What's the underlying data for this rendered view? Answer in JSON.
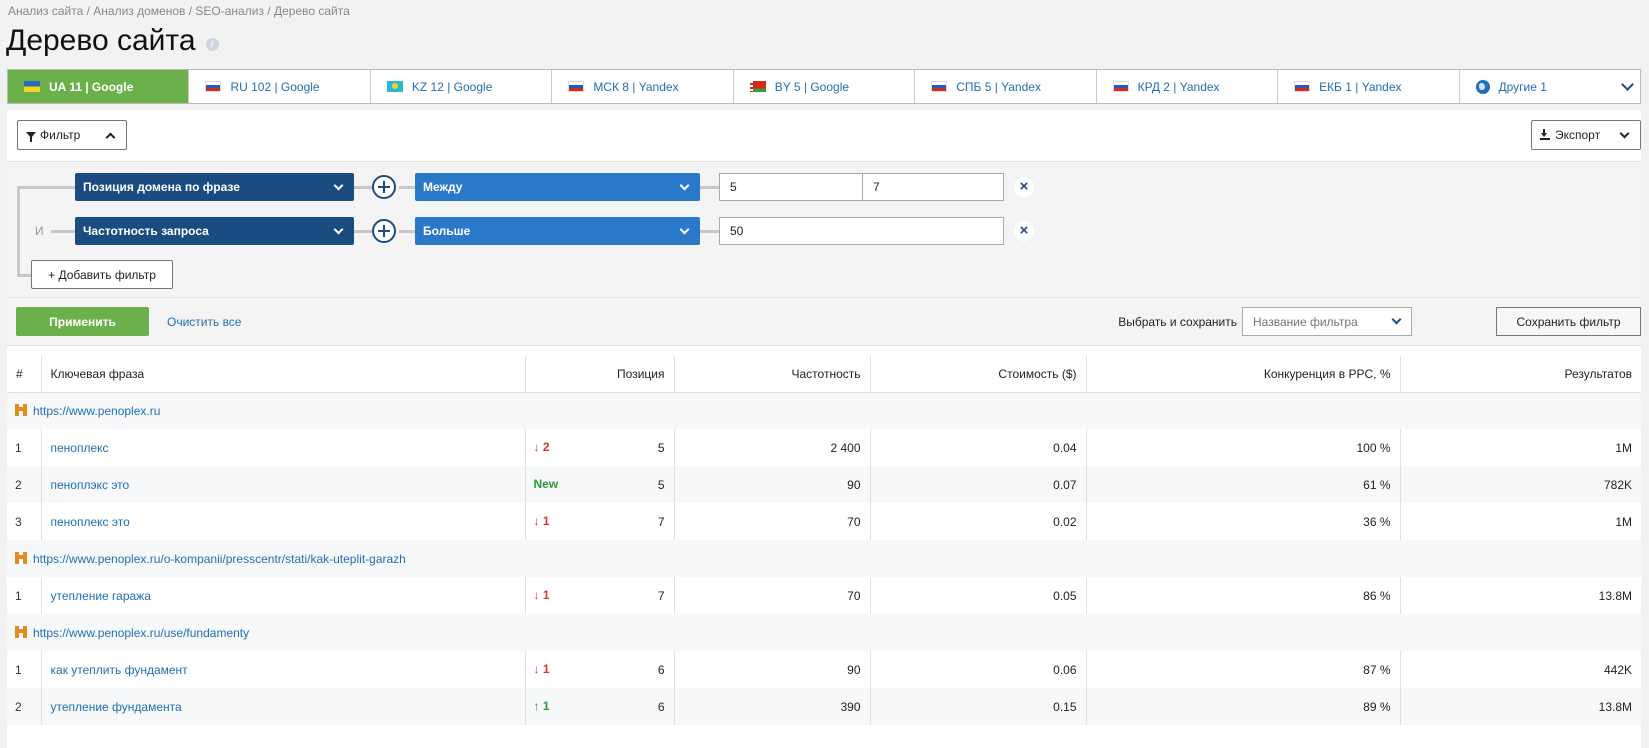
{
  "breadcrumb": [
    "Анализ сайта",
    "Анализ доменов",
    "SEO-анализ",
    "Дерево сайта"
  ],
  "breadcrumb_sep": " / ",
  "page_title": "Дерево сайта",
  "region_tabs": [
    {
      "label": "UA 11 | Google",
      "flag": "ua",
      "active": true
    },
    {
      "label": "RU 102 | Google",
      "flag": "ru",
      "active": false
    },
    {
      "label": "KZ 12 | Google",
      "flag": "kz",
      "active": false
    },
    {
      "label": "МСК 8 | Yandex",
      "flag": "ru",
      "active": false
    },
    {
      "label": "BY 5 | Google",
      "flag": "by",
      "active": false
    },
    {
      "label": "СПБ 5 | Yandex",
      "flag": "ru",
      "active": false
    },
    {
      "label": "КРД 2 | Yandex",
      "flag": "ru",
      "active": false
    },
    {
      "label": "ЕКБ 1 | Yandex",
      "flag": "ru",
      "active": false
    },
    {
      "label": "Другие 1",
      "flag": "globe",
      "active": false
    }
  ],
  "toolbar": {
    "filter_label": "Фильтр",
    "export_label": "Экспорт"
  },
  "filters": {
    "and_label": "И",
    "rows": [
      {
        "field": "Позиция домена по фразе",
        "operator": "Между",
        "value_from": "5",
        "value_to": "7"
      },
      {
        "field": "Частотность запроса",
        "operator": "Больше",
        "value": "50"
      }
    ],
    "add_label": "+ Добавить фильтр"
  },
  "actions": {
    "apply_label": "Применить",
    "clear_label": "Очистить все",
    "save_caption": "Выбрать и сохранить",
    "filter_name_placeholder": "Название фильтра",
    "save_filter_label": "Сохранить фильтр"
  },
  "table": {
    "headers": [
      "#",
      "Ключевая фраза",
      "Позиция",
      "Частотность",
      "Стоимость ($)",
      "Конкуренция в PPC, %",
      "Результатов"
    ],
    "groups": [
      {
        "url": "https://www.penoplex.ru",
        "rows": [
          {
            "n": "1",
            "phrase": "пеноплекс",
            "change": "↓ 2",
            "change_type": "down",
            "position": "5",
            "frequency": "2 400",
            "cost": "0.04",
            "ppc": "100 %",
            "results": "1M"
          },
          {
            "n": "2",
            "phrase": "пеноплэкс это",
            "change": "New",
            "change_type": "new",
            "position": "5",
            "frequency": "90",
            "cost": "0.07",
            "ppc": "61 %",
            "results": "782K"
          },
          {
            "n": "3",
            "phrase": "пеноплекс это",
            "change": "↓ 1",
            "change_type": "down",
            "position": "7",
            "frequency": "70",
            "cost": "0.02",
            "ppc": "36 %",
            "results": "1M"
          }
        ]
      },
      {
        "url": "https://www.penoplex.ru/o-kompanii/presscentr/stati/kak-uteplit-garazh",
        "rows": [
          {
            "n": "1",
            "phrase": "утепление гаража",
            "change": "↓ 1",
            "change_type": "down",
            "position": "7",
            "frequency": "70",
            "cost": "0.05",
            "ppc": "86 %",
            "results": "13.8M"
          }
        ]
      },
      {
        "url": "https://www.penoplex.ru/use/fundamenty",
        "rows": [
          {
            "n": "1",
            "phrase": "как утеплить фундамент",
            "change": "↓ 1",
            "change_type": "down",
            "position": "6",
            "frequency": "90",
            "cost": "0.06",
            "ppc": "87 %",
            "results": "442K"
          },
          {
            "n": "2",
            "phrase": "утепление фундамента",
            "change": "↑ 1",
            "change_type": "up",
            "position": "6",
            "frequency": "390",
            "cost": "0.15",
            "ppc": "89 %",
            "results": "13.8M"
          }
        ]
      }
    ]
  }
}
